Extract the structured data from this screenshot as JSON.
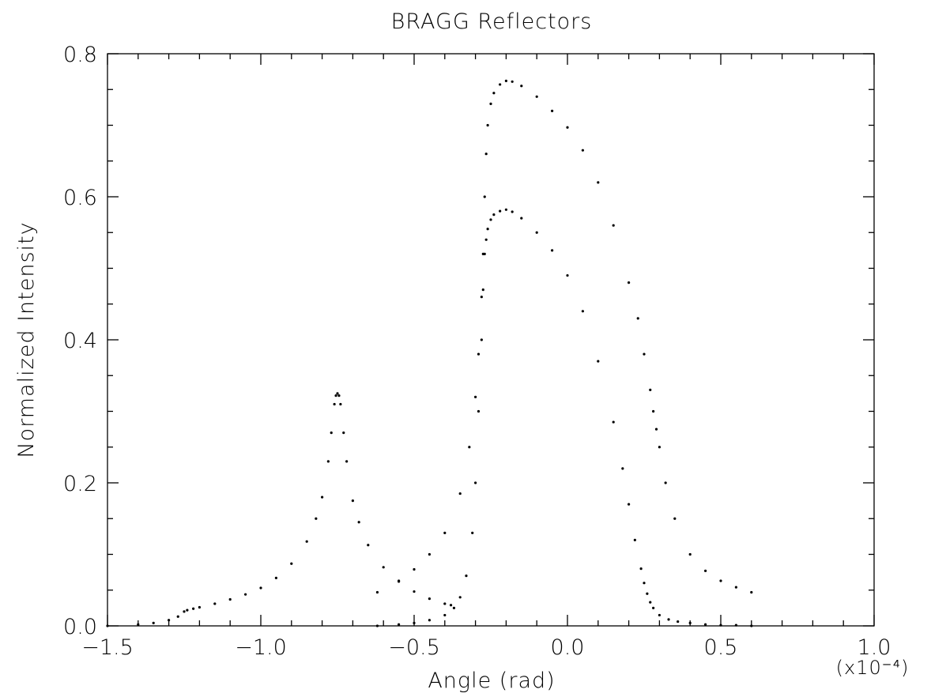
{
  "chart_data": {
    "type": "scatter",
    "title": "BRAGG Reflectors",
    "xlabel": "Angle (rad)",
    "ylabel": "Normalized Intensity",
    "x_multiplier_label": "(x10⁻⁴)",
    "xlim": [
      -1.5,
      1.0
    ],
    "ylim": [
      0.0,
      0.8
    ],
    "x_ticks": [
      -1.5,
      -1.0,
      -0.5,
      0.0,
      0.5,
      1.0
    ],
    "x_tick_labels": [
      "−1.5",
      "−1.0",
      "−0.5",
      "0.0",
      "0.5",
      "1.0"
    ],
    "y_ticks": [
      0.0,
      0.2,
      0.4,
      0.6,
      0.8
    ],
    "y_tick_labels": [
      "0.0",
      "0.2",
      "0.4",
      "0.6",
      "0.8"
    ],
    "x_minor_step": 0.1,
    "y_minor_step": 0.05,
    "grid": false,
    "marker_color": "#000000",
    "series": [
      {
        "x": [
          -1.5,
          -1.4,
          -1.35,
          -1.3,
          -1.27,
          -1.25,
          -1.24,
          -1.22,
          -1.2,
          -1.15,
          -1.1,
          -1.05,
          -1.0,
          -0.95,
          -0.9,
          -0.85,
          -0.82,
          -0.8,
          -0.78,
          -0.77,
          -0.76,
          -0.755,
          -0.75,
          -0.745,
          -0.74,
          -0.73,
          -0.72,
          -0.7,
          -0.68,
          -0.65,
          -0.6,
          -0.55,
          -0.5,
          -0.45,
          -0.4,
          -0.38
        ],
        "y": [
          0.0,
          0.002,
          0.004,
          0.008,
          0.013,
          0.02,
          0.022,
          0.024,
          0.026,
          0.031,
          0.037,
          0.044,
          0.053,
          0.067,
          0.087,
          0.118,
          0.15,
          0.18,
          0.23,
          0.27,
          0.31,
          0.322,
          0.325,
          0.322,
          0.31,
          0.27,
          0.23,
          0.175,
          0.145,
          0.113,
          0.082,
          0.062,
          0.048,
          0.038,
          0.031,
          0.029
        ]
      },
      {
        "x": [
          -0.62,
          -0.55,
          -0.5,
          -0.45,
          -0.4,
          -0.35,
          -0.32,
          -0.3,
          -0.29,
          -0.28,
          -0.275,
          -0.27,
          -0.265,
          -0.26,
          -0.25,
          -0.24,
          -0.22,
          -0.2,
          -0.18,
          -0.15,
          -0.1,
          -0.05,
          0.0,
          0.05,
          0.1,
          0.15,
          0.2,
          0.23,
          0.25,
          0.27,
          0.28,
          0.29,
          0.3,
          0.32,
          0.35,
          0.4,
          0.45,
          0.5,
          0.55,
          0.6
        ],
        "y": [
          0.047,
          0.063,
          0.079,
          0.1,
          0.13,
          0.185,
          0.25,
          0.32,
          0.38,
          0.46,
          0.52,
          0.6,
          0.66,
          0.7,
          0.73,
          0.745,
          0.757,
          0.762,
          0.761,
          0.755,
          0.74,
          0.72,
          0.697,
          0.665,
          0.62,
          0.56,
          0.48,
          0.43,
          0.38,
          0.33,
          0.3,
          0.275,
          0.25,
          0.2,
          0.15,
          0.1,
          0.077,
          0.063,
          0.054,
          0.047
        ]
      },
      {
        "x": [
          -0.62,
          -0.55,
          -0.5,
          -0.45,
          -0.4,
          -0.37,
          -0.35,
          -0.33,
          -0.31,
          -0.3,
          -0.29,
          -0.28,
          -0.275,
          -0.27,
          -0.265,
          -0.26,
          -0.25,
          -0.24,
          -0.22,
          -0.2,
          -0.18,
          -0.15,
          -0.1,
          -0.05,
          0.0,
          0.05,
          0.1,
          0.15,
          0.18,
          0.2,
          0.22,
          0.24,
          0.25,
          0.26,
          0.27,
          0.28,
          0.3,
          0.33,
          0.36,
          0.4,
          0.45,
          0.5,
          0.55,
          0.6
        ],
        "y": [
          0.0,
          0.002,
          0.004,
          0.008,
          0.015,
          0.025,
          0.04,
          0.07,
          0.13,
          0.2,
          0.3,
          0.4,
          0.47,
          0.52,
          0.54,
          0.555,
          0.568,
          0.575,
          0.58,
          0.582,
          0.579,
          0.57,
          0.55,
          0.525,
          0.49,
          0.44,
          0.37,
          0.285,
          0.22,
          0.17,
          0.12,
          0.08,
          0.06,
          0.045,
          0.033,
          0.025,
          0.015,
          0.009,
          0.006,
          0.004,
          0.002,
          0.001,
          0.001,
          0.0
        ]
      }
    ]
  }
}
